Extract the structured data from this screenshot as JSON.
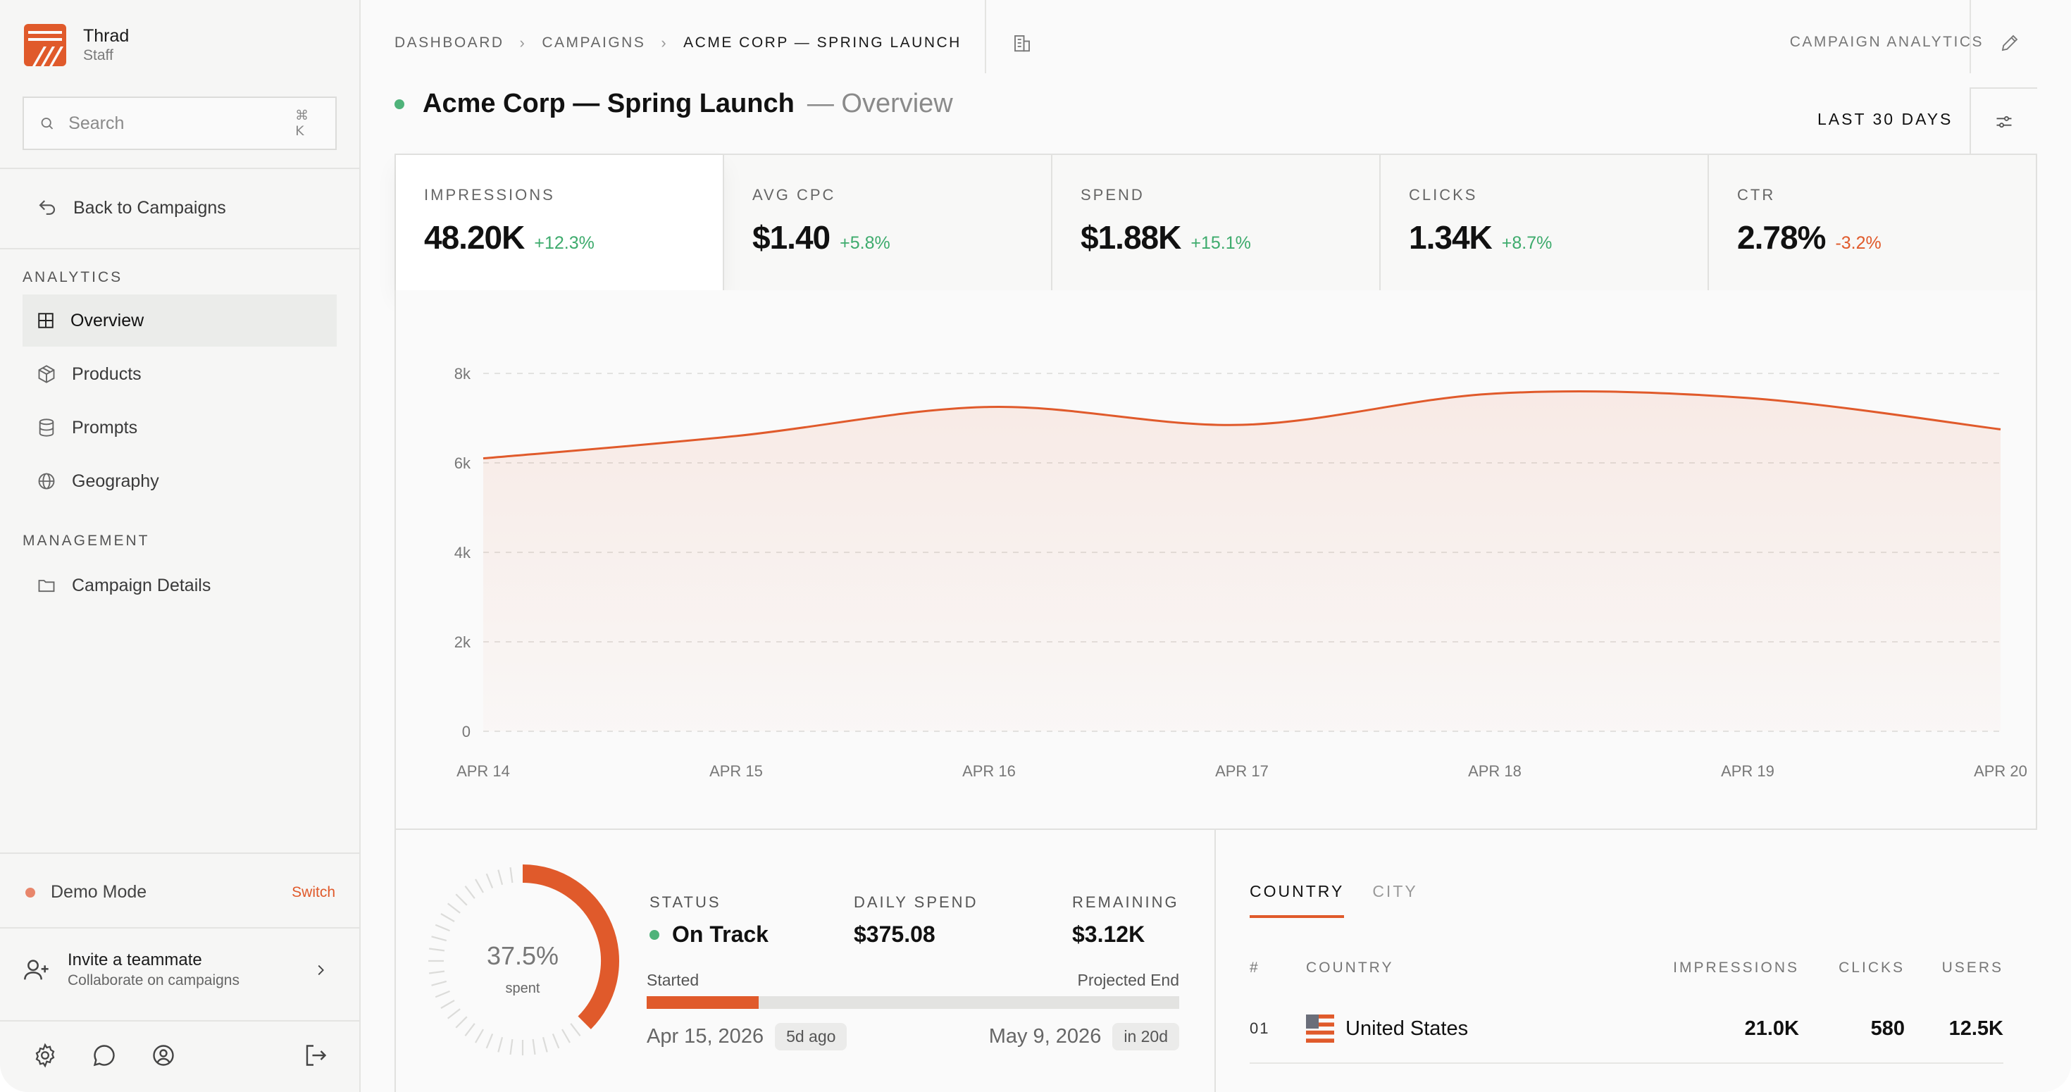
{
  "brand": {
    "name": "Thrad",
    "role": "Staff"
  },
  "search": {
    "placeholder": "Search",
    "shortcut": "⌘ K"
  },
  "sidebar": {
    "back_label": "Back to Campaigns",
    "analytics_heading": "ANALYTICS",
    "analytics_items": [
      {
        "label": "Overview",
        "icon": "grid-icon",
        "active": true
      },
      {
        "label": "Products",
        "icon": "package-icon"
      },
      {
        "label": "Prompts",
        "icon": "database-icon"
      },
      {
        "label": "Geography",
        "icon": "globe-icon"
      }
    ],
    "management_heading": "MANAGEMENT",
    "management_items": [
      {
        "label": "Campaign Details",
        "icon": "folder-icon"
      }
    ],
    "demo_mode": {
      "label": "Demo Mode",
      "action": "Switch"
    },
    "invite": {
      "title": "Invite a teammate",
      "subtitle": "Collaborate on campaigns"
    }
  },
  "header": {
    "breadcrumbs": [
      "DASHBOARD",
      "CAMPAIGNS",
      "ACME CORP — SPRING LAUNCH"
    ],
    "right_label": "CAMPAIGN ANALYTICS",
    "title": "Acme Corp — Spring Launch",
    "subtitle": "— Overview",
    "range": "LAST 30 DAYS"
  },
  "metrics": [
    {
      "label": "IMPRESSIONS",
      "value": "48.20K",
      "delta": "+12.3%",
      "trend": "up"
    },
    {
      "label": "AVG CPC",
      "value": "$1.40",
      "delta": "+5.8%",
      "trend": "up"
    },
    {
      "label": "SPEND",
      "value": "$1.88K",
      "delta": "+15.1%",
      "trend": "up"
    },
    {
      "label": "CLICKS",
      "value": "1.34K",
      "delta": "+8.7%",
      "trend": "up"
    },
    {
      "label": "CTR",
      "value": "2.78%",
      "delta": "-3.2%",
      "trend": "down"
    }
  ],
  "chart_data": {
    "type": "area",
    "x": [
      "APR 14",
      "APR 15",
      "APR 16",
      "APR 17",
      "APR 18",
      "APR 19",
      "APR 20"
    ],
    "series": [
      {
        "values": [
          6100,
          6600,
          7250,
          6850,
          7550,
          7450,
          6750
        ]
      }
    ],
    "yticks": [
      "0",
      "2k",
      "4k",
      "6k",
      "8k"
    ],
    "ylim": [
      0,
      8000
    ],
    "grid": true,
    "color": "#e05a2b"
  },
  "budget": {
    "spent_fraction": 0.375,
    "spent_pct": "37.5%",
    "spent_label": "spent",
    "status_label": "STATUS",
    "status_value": "On Track",
    "daily_label": "DAILY SPEND",
    "daily_value": "$375.08",
    "remaining_label": "REMAINING",
    "remaining_value": "$3.12K",
    "started_label": "Started",
    "end_label": "Projected End",
    "start_date": "Apr 15, 2026",
    "start_ago": "5d ago",
    "end_date": "May 9, 2026",
    "end_in": "in 20d",
    "timeline_progress": 0.21
  },
  "geo": {
    "tabs": [
      "COUNTRY",
      "CITY"
    ],
    "columns": [
      "#",
      "COUNTRY",
      "IMPRESSIONS",
      "CLICKS",
      "USERS"
    ],
    "rows": [
      {
        "rank": "01",
        "country": "United States",
        "impressions": "21.0K",
        "clicks": "580",
        "users": "12.5K"
      }
    ]
  }
}
